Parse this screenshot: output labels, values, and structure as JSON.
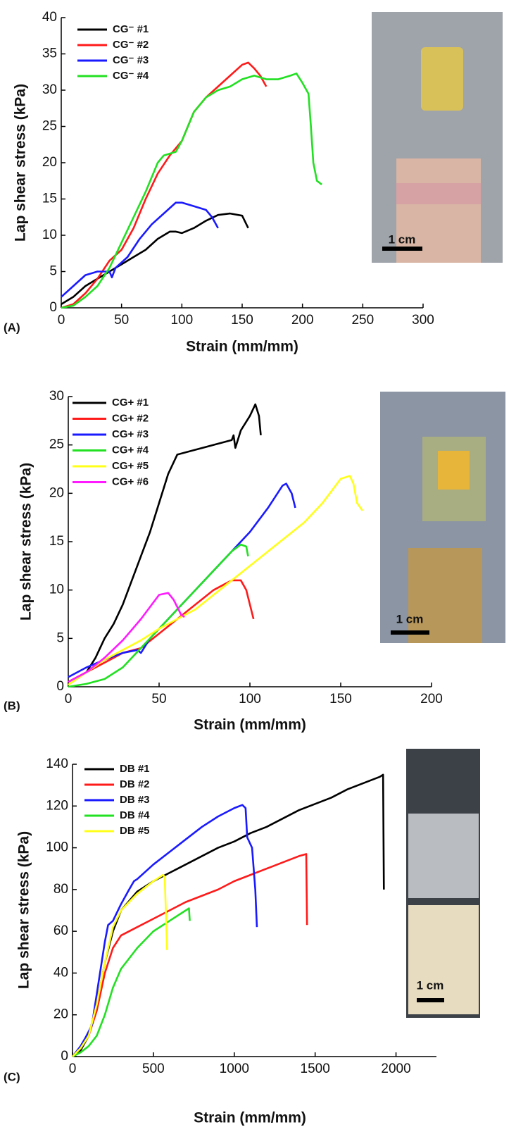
{
  "chart_data": [
    {
      "type": "line",
      "panel_label": "(A)",
      "x_label": "Strain (mm/mm)",
      "y_label": "Lap shear stress (kPa)",
      "scale_bar_label": "1 cm",
      "xlim": [
        0,
        300
      ],
      "xticks": [
        0,
        50,
        100,
        150,
        200,
        250,
        300
      ],
      "ylim": [
        0,
        40
      ],
      "yticks": [
        0,
        5,
        10,
        15,
        20,
        25,
        30,
        35,
        40
      ],
      "series": [
        {
          "name": "CG⁻ #1",
          "color": "#000000",
          "x": [
            0,
            10,
            20,
            30,
            40,
            50,
            60,
            70,
            80,
            90,
            95,
            100,
            110,
            120,
            130,
            140,
            150,
            155
          ],
          "values": [
            0.5,
            1.5,
            3,
            4,
            5,
            6,
            7,
            8,
            9.5,
            10.5,
            10.5,
            10.3,
            11,
            12,
            12.8,
            13,
            12.7,
            11
          ]
        },
        {
          "name": "CG⁻ #2",
          "color": "#ff1a1a",
          "x": [
            0,
            10,
            20,
            30,
            40,
            50,
            60,
            70,
            80,
            90,
            100,
            110,
            120,
            130,
            140,
            150,
            155,
            160,
            165,
            170
          ],
          "values": [
            0,
            0.5,
            2,
            4,
            6.5,
            8,
            11,
            15,
            18.5,
            21,
            23,
            27,
            29,
            30.5,
            32,
            33.5,
            33.8,
            33,
            32,
            30.5
          ]
        },
        {
          "name": "CG⁻ #3",
          "color": "#1a1aff",
          "x": [
            0,
            10,
            20,
            30,
            40,
            42,
            45,
            55,
            65,
            75,
            85,
            95,
            100,
            110,
            120,
            125,
            130
          ],
          "values": [
            1.5,
            3,
            4.5,
            5,
            5,
            4.2,
            5.5,
            7,
            9.5,
            11.5,
            13,
            14.5,
            14.5,
            14,
            13.5,
            12.5,
            11
          ]
        },
        {
          "name": "CG⁻ #4",
          "color": "#22e022",
          "x": [
            0,
            10,
            20,
            30,
            40,
            50,
            60,
            70,
            80,
            85,
            95,
            100,
            110,
            120,
            130,
            140,
            150,
            160,
            170,
            180,
            190,
            195,
            200,
            205,
            207,
            209,
            212,
            216
          ],
          "values": [
            0,
            0.3,
            1.5,
            3,
            5.5,
            9,
            12.5,
            16,
            20,
            21,
            21.5,
            23,
            27,
            29,
            30,
            30.5,
            31.5,
            32,
            31.5,
            31.5,
            32,
            32.3,
            31,
            29.5,
            25,
            20,
            17.5,
            17
          ]
        }
      ]
    },
    {
      "type": "line",
      "panel_label": "(B)",
      "x_label": "Strain (mm/mm)",
      "y_label": "Lap shear stress (kPa)",
      "scale_bar_label": "1 cm",
      "xlim": [
        0,
        200
      ],
      "xticks": [
        0,
        50,
        100,
        150,
        200
      ],
      "ylim": [
        0,
        30
      ],
      "yticks": [
        0,
        5,
        10,
        15,
        20,
        25,
        30
      ],
      "series": [
        {
          "name": "CG+ #1",
          "color": "#000000",
          "x": [
            0,
            10,
            15,
            20,
            25,
            30,
            35,
            40,
            45,
            50,
            55,
            60,
            70,
            80,
            90,
            91,
            92,
            95,
            100,
            103,
            105,
            106
          ],
          "values": [
            0.5,
            1.5,
            3,
            5,
            6.5,
            8.5,
            11,
            13.5,
            16,
            19,
            22,
            24,
            24.5,
            25,
            25.5,
            26,
            24.7,
            26.5,
            28,
            29.2,
            28,
            26
          ]
        },
        {
          "name": "CG+ #2",
          "color": "#ff1a1a",
          "x": [
            0,
            10,
            20,
            30,
            40,
            50,
            60,
            70,
            80,
            90,
            95,
            98,
            100,
            102
          ],
          "values": [
            0.5,
            1.5,
            2.5,
            3.5,
            4,
            5.5,
            7,
            8.5,
            10,
            11,
            11,
            10,
            8.5,
            7
          ]
        },
        {
          "name": "CG+ #3",
          "color": "#1a1aff",
          "x": [
            0,
            10,
            20,
            30,
            38,
            40,
            45,
            50,
            60,
            70,
            80,
            90,
            100,
            110,
            118,
            120,
            123,
            125
          ],
          "values": [
            1,
            2,
            2.8,
            3.5,
            3.8,
            3.5,
            5,
            6,
            8,
            10,
            12,
            14,
            16,
            18.5,
            20.8,
            21,
            20,
            18.5
          ]
        },
        {
          "name": "CG+ #4",
          "color": "#22e022",
          "x": [
            0,
            10,
            20,
            30,
            40,
            50,
            60,
            70,
            80,
            90,
            95,
            98,
            99
          ],
          "values": [
            0,
            0.3,
            0.8,
            2,
            4,
            6,
            8,
            10,
            12,
            14,
            14.7,
            14.5,
            13.5
          ]
        },
        {
          "name": "CG+ #5",
          "color": "#ffff1a",
          "x": [
            0,
            10,
            20,
            30,
            40,
            50,
            60,
            70,
            80,
            90,
            100,
            110,
            120,
            130,
            140,
            150,
            155,
            157,
            159,
            162
          ],
          "values": [
            0.2,
            1.5,
            2.8,
            3.8,
            4.8,
            6,
            7,
            8,
            9.5,
            11,
            12.5,
            14,
            15.5,
            17,
            19,
            21.5,
            21.8,
            21,
            19,
            18.2
          ]
        },
        {
          "name": "CG+ #6",
          "color": "#ff1aff",
          "x": [
            0,
            10,
            20,
            30,
            40,
            50,
            55,
            58,
            62,
            64
          ],
          "values": [
            0.5,
            1.5,
            3,
            4.8,
            7,
            9.5,
            9.7,
            9,
            7.5,
            7.2
          ]
        }
      ]
    },
    {
      "type": "line",
      "panel_label": "(C)",
      "x_label": "Strain (mm/mm)",
      "y_label": "Lap shear stress (kPa)",
      "scale_bar_label": "1 cm",
      "xlim": [
        0,
        2250
      ],
      "xticks": [
        0,
        500,
        1000,
        1500,
        2000
      ],
      "ylim": [
        0,
        140
      ],
      "yticks": [
        0,
        20,
        40,
        60,
        80,
        100,
        120,
        140
      ],
      "series": [
        {
          "name": "DB #1",
          "color": "#000000",
          "x": [
            0,
            50,
            100,
            150,
            200,
            250,
            300,
            400,
            500,
            600,
            700,
            800,
            900,
            1000,
            1100,
            1200,
            1300,
            1400,
            1500,
            1600,
            1700,
            1800,
            1900,
            1920,
            1925
          ],
          "values": [
            0,
            3,
            10,
            25,
            45,
            60,
            70,
            79,
            84,
            88,
            92,
            96,
            100,
            103,
            107,
            110,
            114,
            118,
            121,
            124,
            128,
            131,
            134,
            135,
            80
          ]
        },
        {
          "name": "DB #2",
          "color": "#ff1a1a",
          "x": [
            0,
            50,
            100,
            150,
            200,
            250,
            300,
            400,
            500,
            600,
            700,
            800,
            900,
            1000,
            1100,
            1200,
            1300,
            1400,
            1445,
            1450
          ],
          "values": [
            0,
            4,
            10,
            22,
            40,
            52,
            58,
            62,
            66,
            70,
            74,
            77,
            80,
            84,
            87,
            90,
            93,
            96,
            97,
            63
          ]
        },
        {
          "name": "DB #3",
          "color": "#1a1aff",
          "x": [
            0,
            50,
            80,
            120,
            160,
            200,
            220,
            250,
            300,
            350,
            380,
            400,
            500,
            600,
            700,
            800,
            900,
            1000,
            1050,
            1070,
            1080,
            1110,
            1130,
            1140
          ],
          "values": [
            0,
            5,
            9,
            15,
            35,
            55,
            63,
            65,
            73,
            80,
            84,
            85,
            92,
            98,
            104,
            110,
            115,
            119,
            120.5,
            119,
            105,
            100,
            80,
            62
          ]
        },
        {
          "name": "DB #4",
          "color": "#22e022",
          "x": [
            0,
            50,
            100,
            150,
            200,
            250,
            300,
            400,
            500,
            600,
            700,
            720,
            725
          ],
          "values": [
            0,
            2,
            5,
            10,
            20,
            33,
            42,
            52,
            60,
            65,
            70,
            71,
            65
          ]
        },
        {
          "name": "DB #5",
          "color": "#ffff1a",
          "x": [
            0,
            50,
            100,
            150,
            200,
            250,
            300,
            400,
            500,
            560,
            570,
            585
          ],
          "values": [
            0,
            4,
            10,
            25,
            45,
            62,
            70,
            78,
            84,
            87,
            86,
            51
          ]
        }
      ]
    }
  ]
}
